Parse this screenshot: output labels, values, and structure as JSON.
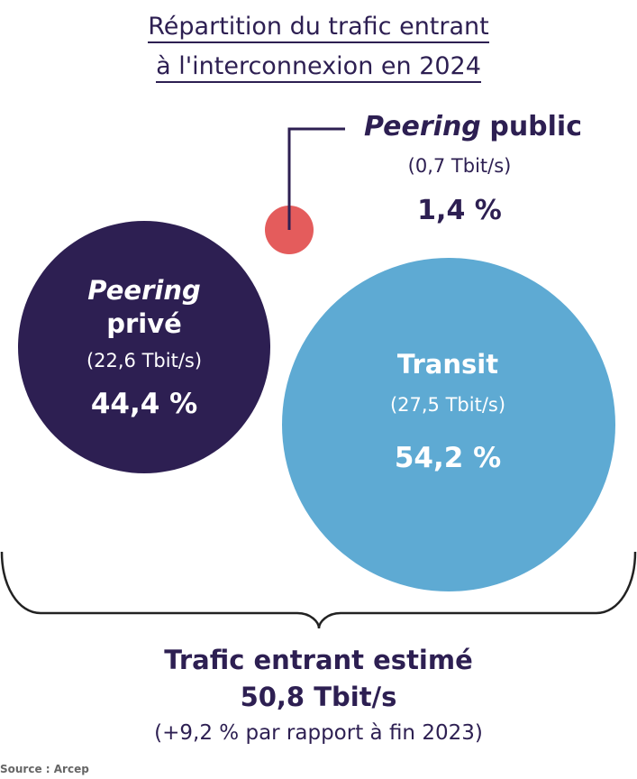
{
  "chart_data": {
    "type": "bubble",
    "title": "Répartition du trafic entrant à l'interconnexion en 2024",
    "title_lines": [
      "Répartition du trafic entrant",
      "à l'interconnexion en 2024"
    ],
    "unit": "Tbit/s",
    "series": [
      {
        "name_italic": "Peering",
        "name_rest": "privé",
        "value": 22.6,
        "value_label": "(22,6 Tbit/s)",
        "share": 44.4,
        "share_label": "44,4 %",
        "color": "#2d1f52",
        "text_color": "#ffffff"
      },
      {
        "name_italic": "Peering",
        "name_rest": "public",
        "value": 0.7,
        "value_label": "(0,7 Tbit/s)",
        "share": 1.4,
        "share_label": "1,4 %",
        "color": "#e45c5c",
        "text_color": "#2d1f52"
      },
      {
        "name_italic": "",
        "name_rest": "Transit",
        "value": 27.5,
        "value_label": "(27,5 Tbit/s)",
        "share": 54.2,
        "share_label": "54,2 %",
        "color": "#5eaad3",
        "text_color": "#ffffff"
      }
    ],
    "total": {
      "label": "Trafic entrant estimé",
      "value": 50.8,
      "value_label": "50,8 Tbit/s",
      "change_label": "(+9,2 % par rapport à fin 2023)"
    },
    "source": "Source : Arcep"
  }
}
